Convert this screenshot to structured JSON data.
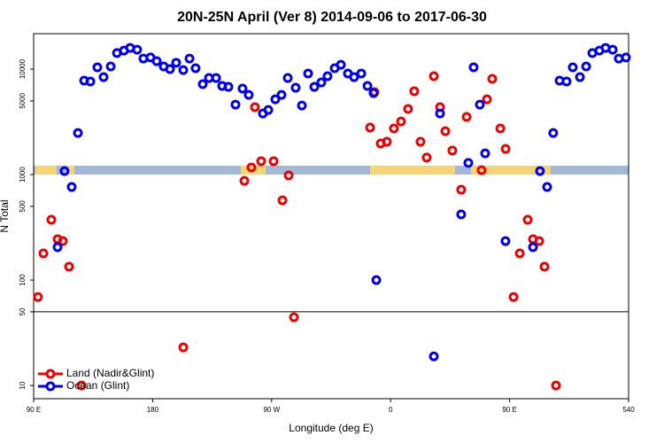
{
  "chart_data": {
    "type": "scatter",
    "title": "20N-25N April (Ver 8)   2014-09-06 to 2017-06-30",
    "xlabel": "Longitude (deg E)",
    "ylabel": "N Total",
    "xlim": [
      90,
      540
    ],
    "xticks": [
      {
        "value": 90,
        "label": "90 E"
      },
      180,
      {
        "value": 270,
        "label": "90 W"
      },
      {
        "value": 360,
        "label": "0"
      },
      {
        "value": 450,
        "label": "90 E"
      },
      540
    ],
    "ylim": [
      7.5,
      21700
    ],
    "yticks": [
      10,
      50,
      100,
      500,
      1000,
      5000,
      10000
    ],
    "log_y": true,
    "hline": 50,
    "legend": "lower left",
    "series": [
      {
        "name": "Land (Nadir&Glint)",
        "color": "#ee0000",
        "x": [
          93.3,
          97.4,
          103.4,
          108.1,
          112.1,
          116.8,
          126.2,
          203.2,
          249.4,
          254.7,
          257.4,
          262.1,
          271.5,
          278.2,
          282.9,
          286.9,
          347.8,
          344.5,
          352.5,
          357.2,
          362.5,
          367.9,
          373.2,
          377.9,
          382.6,
          387.3,
          392.7,
          397.4,
          401.4,
          406.7,
          413.4,
          417.5,
          428.8,
          432.9,
          436.9,
          443,
          447,
          453,
          457.7,
          463.7,
          467.7,
          472.4,
          476.4,
          485.1
        ],
        "values": [
          69,
          179,
          373,
          244,
          234,
          134,
          10,
          23,
          873,
          1170,
          4360,
          1340,
          1340,
          570,
          982,
          44.4,
          6050,
          2790,
          1970,
          2050,
          2740,
          3190,
          4190,
          6170,
          2050,
          1450,
          8580,
          4360,
          2580,
          1690,
          719,
          3520,
          1100,
          5170,
          8090,
          2740,
          1750,
          69,
          179,
          373,
          244,
          234,
          134,
          10
        ]
      },
      {
        "name": "Ocean (Glint)",
        "color": "#0000ee",
        "x": [
          113.4,
          108.1,
          118.8,
          123.5,
          128.2,
          132.9,
          138.2,
          142.9,
          148.3,
          153,
          158.3,
          163,
          168.3,
          173,
          178.4,
          183.1,
          188.4,
          193.1,
          197.8,
          203.2,
          207.9,
          212.5,
          217.9,
          222.6,
          228,
          232.6,
          237.3,
          242.7,
          248,
          252.7,
          263.4,
          267.5,
          272.8,
          277.5,
          282.2,
          288.2,
          292.9,
          297.6,
          302.3,
          307.6,
          312.3,
          317.7,
          322.4,
          327.7,
          332.4,
          337.8,
          342.5,
          347.1,
          349.2,
          392.7,
          397.4,
          413.4,
          418.8,
          422.8,
          427.5,
          431.5,
          446.9,
          467.7,
          473,
          478.4,
          483,
          487.8,
          493.1,
          497.8,
          503.2,
          507.9,
          512.6,
          517.9,
          522.6,
          528,
          532.6,
          538
        ],
        "values": [
          1080,
          205,
          763,
          2480,
          7780,
          7630,
          10400,
          8400,
          10600,
          14200,
          15000,
          15900,
          15300,
          12600,
          12900,
          11900,
          10600,
          10000,
          11500,
          9800,
          12600,
          10200,
          7200,
          8240,
          8240,
          6930,
          6790,
          4610,
          6540,
          5700,
          3800,
          4100,
          5170,
          5700,
          8240,
          6660,
          4520,
          9080,
          6790,
          7480,
          8580,
          10200,
          11000,
          9080,
          8400,
          9080,
          6930,
          5930,
          100,
          18.9,
          3800,
          419,
          1290,
          10400,
          4610,
          1590,
          234,
          205,
          1080,
          763,
          2480,
          7780,
          7630,
          10400,
          8400,
          10600,
          14200,
          15000,
          15900,
          15300,
          12600,
          12900
        ]
      }
    ]
  }
}
